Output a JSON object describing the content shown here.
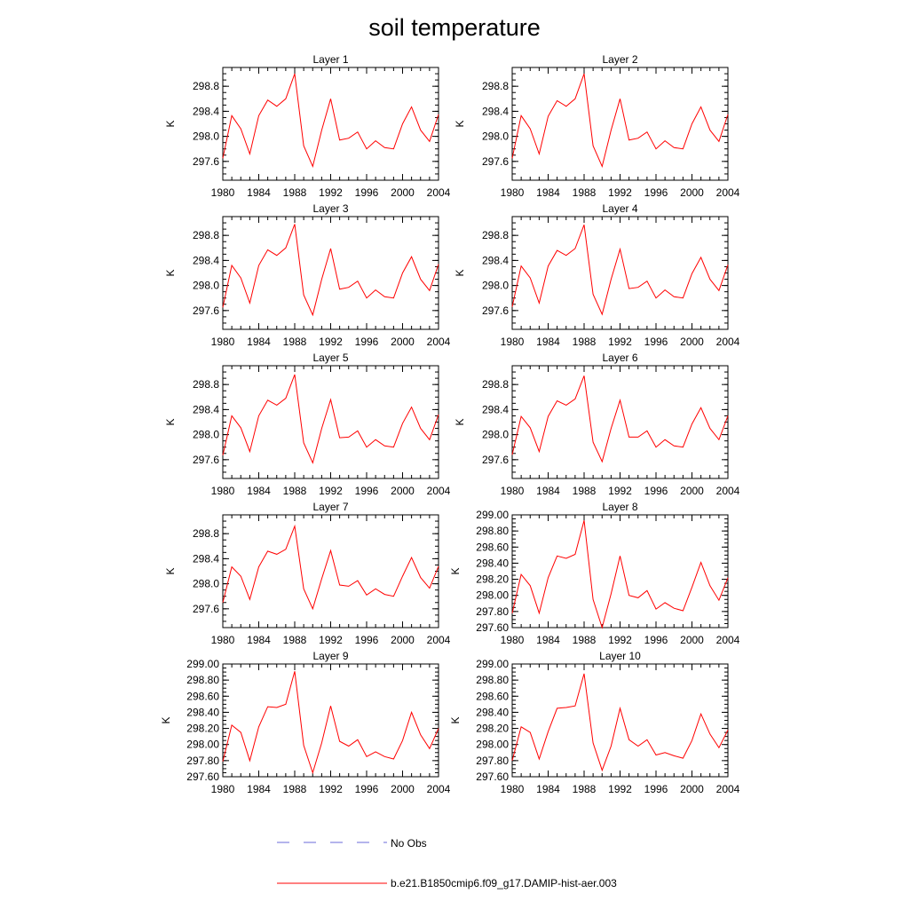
{
  "figure": {
    "title": "soil temperature"
  },
  "legend": {
    "placement": "bottom-center",
    "entries": [
      {
        "label": "No Obs",
        "color": "#6a6ad8",
        "style": "dashed"
      },
      {
        "label": "b.e21.B1850cmip6.f09_g17.DAMIP-hist-aer.003",
        "color": "#ff0000",
        "style": "solid"
      }
    ]
  },
  "chart_data": [
    {
      "type": "line",
      "title": "Layer 1",
      "ylabel": "K",
      "xlim": [
        1980,
        2004
      ],
      "ylim": [
        297.3,
        299.1
      ],
      "xticks": [
        "1980",
        "1984",
        "1988",
        "1992",
        "1996",
        "2000",
        "2004"
      ],
      "yticks": [
        "297.6",
        "298.0",
        "298.4",
        "298.8"
      ],
      "series": [
        {
          "name": "b.e21.B1850cmip6.f09_g17.DAMIP-hist-aer.003",
          "color": "#ff0000",
          "x": [
            1980,
            1981,
            1982,
            1983,
            1984,
            1985,
            1986,
            1987,
            1988,
            1989,
            1990,
            1991,
            1992,
            1993,
            1994,
            1995,
            1996,
            1997,
            1998,
            1999,
            2000,
            2001,
            2002,
            2003,
            2004
          ],
          "y": [
            297.65,
            298.33,
            298.12,
            297.72,
            298.33,
            298.58,
            298.48,
            298.6,
            299.0,
            297.85,
            297.52,
            298.1,
            298.6,
            297.94,
            297.97,
            298.07,
            297.8,
            297.93,
            297.82,
            297.8,
            298.2,
            298.47,
            298.1,
            297.92,
            298.35
          ]
        }
      ]
    },
    {
      "type": "line",
      "title": "Layer 2",
      "ylabel": "K",
      "xlim": [
        1980,
        2004
      ],
      "ylim": [
        297.3,
        299.1
      ],
      "xticks": [
        "1980",
        "1984",
        "1988",
        "1992",
        "1996",
        "2000",
        "2004"
      ],
      "yticks": [
        "297.6",
        "298.0",
        "298.4",
        "298.8"
      ],
      "series": [
        {
          "name": "b.e21.B1850cmip6.f09_g17.DAMIP-hist-aer.003",
          "color": "#ff0000",
          "x": [
            1980,
            1981,
            1982,
            1983,
            1984,
            1985,
            1986,
            1987,
            1988,
            1989,
            1990,
            1991,
            1992,
            1993,
            1994,
            1995,
            1996,
            1997,
            1998,
            1999,
            2000,
            2001,
            2002,
            2003,
            2004
          ],
          "y": [
            297.65,
            298.33,
            298.12,
            297.72,
            298.32,
            298.57,
            298.48,
            298.6,
            299.0,
            297.85,
            297.52,
            298.1,
            298.6,
            297.94,
            297.97,
            298.07,
            297.8,
            297.93,
            297.82,
            297.8,
            298.2,
            298.47,
            298.1,
            297.92,
            298.35
          ]
        }
      ]
    },
    {
      "type": "line",
      "title": "Layer 3",
      "ylabel": "K",
      "xlim": [
        1980,
        2004
      ],
      "ylim": [
        297.3,
        299.1
      ],
      "xticks": [
        "1980",
        "1984",
        "1988",
        "1992",
        "1996",
        "2000",
        "2004"
      ],
      "yticks": [
        "297.6",
        "298.0",
        "298.4",
        "298.8"
      ],
      "series": [
        {
          "name": "b.e21.B1850cmip6.f09_g17.DAMIP-hist-aer.003",
          "color": "#ff0000",
          "x": [
            1980,
            1981,
            1982,
            1983,
            1984,
            1985,
            1986,
            1987,
            1988,
            1989,
            1990,
            1991,
            1992,
            1993,
            1994,
            1995,
            1996,
            1997,
            1998,
            1999,
            2000,
            2001,
            2002,
            2003,
            2004
          ],
          "y": [
            297.65,
            298.32,
            298.12,
            297.72,
            298.32,
            298.57,
            298.48,
            298.6,
            298.98,
            297.85,
            297.53,
            298.1,
            298.59,
            297.94,
            297.97,
            298.07,
            297.8,
            297.93,
            297.82,
            297.8,
            298.2,
            298.46,
            298.1,
            297.92,
            298.34
          ]
        }
      ]
    },
    {
      "type": "line",
      "title": "Layer 4",
      "ylabel": "K",
      "xlim": [
        1980,
        2004
      ],
      "ylim": [
        297.3,
        299.1
      ],
      "xticks": [
        "1980",
        "1984",
        "1988",
        "1992",
        "1996",
        "2000",
        "2004"
      ],
      "yticks": [
        "297.6",
        "298.0",
        "298.4",
        "298.8"
      ],
      "series": [
        {
          "name": "b.e21.B1850cmip6.f09_g17.DAMIP-hist-aer.003",
          "color": "#ff0000",
          "x": [
            1980,
            1981,
            1982,
            1983,
            1984,
            1985,
            1986,
            1987,
            1988,
            1989,
            1990,
            1991,
            1992,
            1993,
            1994,
            1995,
            1996,
            1997,
            1998,
            1999,
            2000,
            2001,
            2002,
            2003,
            2004
          ],
          "y": [
            297.66,
            298.31,
            298.12,
            297.72,
            298.31,
            298.56,
            298.48,
            298.59,
            298.97,
            297.86,
            297.54,
            298.1,
            298.58,
            297.95,
            297.97,
            298.07,
            297.8,
            297.93,
            297.82,
            297.8,
            298.19,
            298.45,
            298.1,
            297.92,
            298.33
          ]
        }
      ]
    },
    {
      "type": "line",
      "title": "Layer 5",
      "ylabel": "K",
      "xlim": [
        1980,
        2004
      ],
      "ylim": [
        297.3,
        299.1
      ],
      "xticks": [
        "1980",
        "1984",
        "1988",
        "1992",
        "1996",
        "2000",
        "2004"
      ],
      "yticks": [
        "297.6",
        "298.0",
        "298.4",
        "298.8"
      ],
      "series": [
        {
          "name": "b.e21.B1850cmip6.f09_g17.DAMIP-hist-aer.003",
          "color": "#ff0000",
          "x": [
            1980,
            1981,
            1982,
            1983,
            1984,
            1985,
            1986,
            1987,
            1988,
            1989,
            1990,
            1991,
            1992,
            1993,
            1994,
            1995,
            1996,
            1997,
            1998,
            1999,
            2000,
            2001,
            2002,
            2003,
            2004
          ],
          "y": [
            297.67,
            298.3,
            298.11,
            297.73,
            298.3,
            298.55,
            298.47,
            298.58,
            298.96,
            297.87,
            297.55,
            298.1,
            298.56,
            297.95,
            297.96,
            298.06,
            297.8,
            297.92,
            297.82,
            297.8,
            298.18,
            298.44,
            298.1,
            297.92,
            298.32
          ]
        }
      ]
    },
    {
      "type": "line",
      "title": "Layer 6",
      "ylabel": "K",
      "xlim": [
        1980,
        2004
      ],
      "ylim": [
        297.3,
        299.1
      ],
      "xticks": [
        "1980",
        "1984",
        "1988",
        "1992",
        "1996",
        "2000",
        "2004"
      ],
      "yticks": [
        "297.6",
        "298.0",
        "298.4",
        "298.8"
      ],
      "series": [
        {
          "name": "b.e21.B1850cmip6.f09_g17.DAMIP-hist-aer.003",
          "color": "#ff0000",
          "x": [
            1980,
            1981,
            1982,
            1983,
            1984,
            1985,
            1986,
            1987,
            1988,
            1989,
            1990,
            1991,
            1992,
            1993,
            1994,
            1995,
            1996,
            1997,
            1998,
            1999,
            2000,
            2001,
            2002,
            2003,
            2004
          ],
          "y": [
            297.68,
            298.29,
            298.11,
            297.73,
            298.29,
            298.54,
            298.47,
            298.57,
            298.94,
            297.88,
            297.57,
            298.1,
            298.55,
            297.96,
            297.96,
            298.06,
            297.8,
            297.92,
            297.82,
            297.8,
            298.17,
            298.43,
            298.1,
            297.92,
            298.3
          ]
        }
      ]
    },
    {
      "type": "line",
      "title": "Layer 7",
      "ylabel": "K",
      "xlim": [
        1980,
        2004
      ],
      "ylim": [
        297.3,
        299.1
      ],
      "xticks": [
        "1980",
        "1984",
        "1988",
        "1992",
        "1996",
        "2000",
        "2004"
      ],
      "yticks": [
        "297.6",
        "298.0",
        "298.4",
        "298.8"
      ],
      "series": [
        {
          "name": "b.e21.B1850cmip6.f09_g17.DAMIP-hist-aer.003",
          "color": "#ff0000",
          "x": [
            1980,
            1981,
            1982,
            1983,
            1984,
            1985,
            1986,
            1987,
            1988,
            1989,
            1990,
            1991,
            1992,
            1993,
            1994,
            1995,
            1996,
            1997,
            1998,
            1999,
            2000,
            2001,
            2002,
            2003,
            2004
          ],
          "y": [
            297.7,
            298.27,
            298.12,
            297.75,
            298.27,
            298.52,
            298.47,
            298.55,
            298.92,
            297.92,
            297.6,
            298.08,
            298.53,
            297.98,
            297.96,
            298.05,
            297.82,
            297.92,
            297.83,
            297.8,
            298.12,
            298.42,
            298.1,
            297.93,
            298.28
          ]
        }
      ]
    },
    {
      "type": "line",
      "title": "Layer 8",
      "ylabel": "K",
      "xlim": [
        1980,
        2004
      ],
      "ylim": [
        297.6,
        299.0
      ],
      "xticks": [
        "1980",
        "1984",
        "1988",
        "1992",
        "1996",
        "2000",
        "2004"
      ],
      "yticks": [
        "297.60",
        "297.80",
        "298.00",
        "298.20",
        "298.40",
        "298.60",
        "298.80",
        "299.00"
      ],
      "series": [
        {
          "name": "b.e21.B1850cmip6.f09_g17.DAMIP-hist-aer.003",
          "color": "#ff0000",
          "x": [
            1980,
            1981,
            1982,
            1983,
            1984,
            1985,
            1986,
            1987,
            1988,
            1989,
            1990,
            1991,
            1992,
            1993,
            1994,
            1995,
            1996,
            1997,
            1998,
            1999,
            2000,
            2001,
            2002,
            2003,
            2004
          ],
          "y": [
            297.78,
            298.26,
            298.12,
            297.78,
            298.22,
            298.49,
            298.46,
            298.51,
            298.93,
            297.95,
            297.6,
            298.02,
            298.49,
            298.0,
            297.97,
            298.06,
            297.83,
            297.91,
            297.84,
            297.81,
            298.1,
            298.41,
            298.12,
            297.94,
            298.22
          ]
        }
      ]
    },
    {
      "type": "line",
      "title": "Layer 9",
      "ylabel": "K",
      "xlim": [
        1980,
        2004
      ],
      "ylim": [
        297.6,
        299.0
      ],
      "xticks": [
        "1980",
        "1984",
        "1988",
        "1992",
        "1996",
        "2000",
        "2004"
      ],
      "yticks": [
        "297.60",
        "297.80",
        "298.00",
        "298.20",
        "298.40",
        "298.60",
        "298.80",
        "299.00"
      ],
      "series": [
        {
          "name": "b.e21.B1850cmip6.f09_g17.DAMIP-hist-aer.003",
          "color": "#ff0000",
          "x": [
            1980,
            1981,
            1982,
            1983,
            1984,
            1985,
            1986,
            1987,
            1988,
            1989,
            1990,
            1991,
            1992,
            1993,
            1994,
            1995,
            1996,
            1997,
            1998,
            1999,
            2000,
            2001,
            2002,
            2003,
            2004
          ],
          "y": [
            297.79,
            298.24,
            298.15,
            297.8,
            298.22,
            298.47,
            298.46,
            298.5,
            298.91,
            297.99,
            297.65,
            298.02,
            298.48,
            298.04,
            297.98,
            298.06,
            297.85,
            297.91,
            297.85,
            297.82,
            298.05,
            298.4,
            298.12,
            297.95,
            298.2
          ]
        }
      ]
    },
    {
      "type": "line",
      "title": "Layer 10",
      "ylabel": "K",
      "xlim": [
        1980,
        2004
      ],
      "ylim": [
        297.6,
        299.0
      ],
      "xticks": [
        "1980",
        "1984",
        "1988",
        "1992",
        "1996",
        "2000",
        "2004"
      ],
      "yticks": [
        "297.60",
        "297.80",
        "298.00",
        "298.20",
        "298.40",
        "298.60",
        "298.80",
        "299.00"
      ],
      "series": [
        {
          "name": "b.e21.B1850cmip6.f09_g17.DAMIP-hist-aer.003",
          "color": "#ff0000",
          "x": [
            1980,
            1981,
            1982,
            1983,
            1984,
            1985,
            1986,
            1987,
            1988,
            1989,
            1990,
            1991,
            1992,
            1993,
            1994,
            1995,
            1996,
            1997,
            1998,
            1999,
            2000,
            2001,
            2002,
            2003,
            2004
          ],
          "y": [
            297.8,
            298.22,
            298.15,
            297.82,
            298.16,
            298.45,
            298.46,
            298.48,
            298.88,
            298.02,
            297.68,
            297.98,
            298.45,
            298.06,
            297.98,
            298.06,
            297.87,
            297.9,
            297.86,
            297.83,
            298.05,
            298.38,
            298.13,
            297.96,
            298.18
          ]
        }
      ]
    }
  ]
}
